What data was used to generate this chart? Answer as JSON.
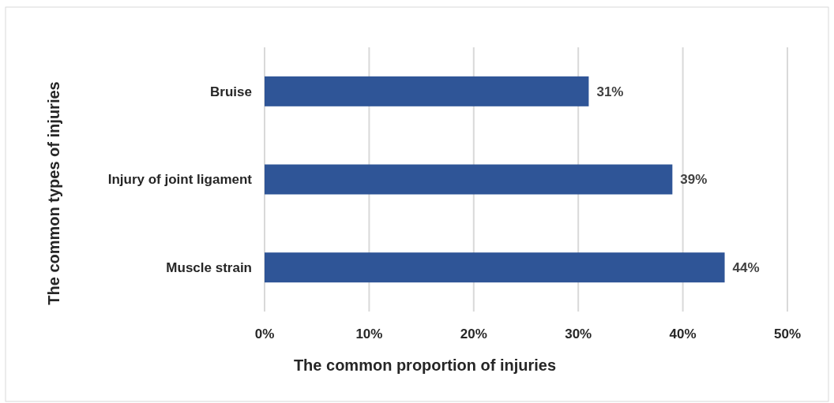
{
  "chart_data": {
    "type": "bar",
    "orientation": "horizontal",
    "categories": [
      "Bruise",
      "Injury of joint ligament",
      "Muscle strain"
    ],
    "values": [
      31,
      39,
      44
    ],
    "color": "#2f5597",
    "value_labels": [
      "31%",
      "39%",
      "44%"
    ],
    "xlim": [
      0,
      50
    ],
    "xticks": [
      {
        "value": 0,
        "label": "0%"
      },
      {
        "value": 10,
        "label": "10%"
      },
      {
        "value": 20,
        "label": "20%"
      },
      {
        "value": 30,
        "label": "30%"
      },
      {
        "value": 40,
        "label": "40%"
      },
      {
        "value": 50,
        "label": "50%"
      }
    ],
    "grid": "x",
    "xlabel": "The common proportion of injuries",
    "ylabel": "The common types of injuries"
  }
}
